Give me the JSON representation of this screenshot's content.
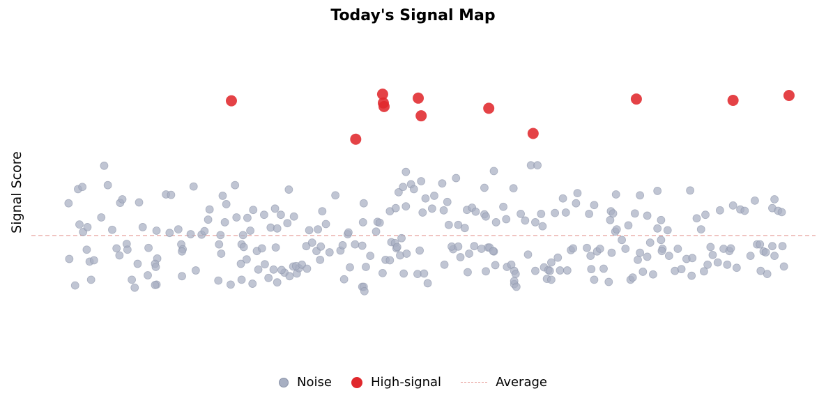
{
  "chart_data": {
    "type": "scatter",
    "title": "Today's Signal Map",
    "xlabel": "",
    "ylabel": "Signal Score",
    "xlim": [
      0,
      100
    ],
    "ylim": [
      -2.95,
      4.7
    ],
    "grid": false,
    "axes_visible": false,
    "legend_placement": "bottom-center",
    "average": 0,
    "series": [
      {
        "name": "Noise",
        "color": "#a7afc2",
        "style": "circle-small",
        "points": [
          [
            0.8,
            0.73
          ],
          [
            0.9,
            -0.53
          ],
          [
            2.1,
            1.05
          ],
          [
            2.7,
            1.1
          ],
          [
            1.7,
            -1.13
          ],
          [
            2.8,
            0.08
          ],
          [
            2.3,
            0.25
          ],
          [
            3.4,
            0.19
          ],
          [
            3.3,
            -0.32
          ],
          [
            3.7,
            -0.59
          ],
          [
            4.3,
            -0.56
          ],
          [
            3.9,
            -1.0
          ],
          [
            5.7,
            1.58
          ],
          [
            6.2,
            1.14
          ],
          [
            5.3,
            0.41
          ],
          [
            6.8,
            0.13
          ],
          [
            7.4,
            -0.29
          ],
          [
            7.9,
            0.74
          ],
          [
            8.2,
            0.82
          ],
          [
            8.8,
            -0.19
          ],
          [
            7.8,
            -0.45
          ],
          [
            8.9,
            -0.32
          ],
          [
            9.5,
            -1.0
          ],
          [
            9.9,
            -1.18
          ],
          [
            11.0,
            0.19
          ],
          [
            10.5,
            0.75
          ],
          [
            10.3,
            -0.64
          ],
          [
            11.8,
            -0.28
          ],
          [
            11.7,
            -0.9
          ],
          [
            12.9,
            0.11
          ],
          [
            13.0,
            -0.52
          ],
          [
            12.7,
            -0.64
          ],
          [
            12.8,
            -0.71
          ],
          [
            12.9,
            -1.11
          ],
          [
            12.7,
            -1.12
          ],
          [
            14.2,
            0.93
          ],
          [
            14.7,
            0.06
          ],
          [
            14.9,
            0.92
          ],
          [
            15.9,
            0.14
          ],
          [
            16.3,
            -0.2
          ],
          [
            16.5,
            -0.31
          ],
          [
            16.4,
            -0.36
          ],
          [
            16.4,
            -0.92
          ],
          [
            17.6,
            0.03
          ],
          [
            18.0,
            1.11
          ],
          [
            18.3,
            -0.79
          ],
          [
            19.1,
            0.02
          ],
          [
            19.5,
            0.1
          ],
          [
            20.0,
            0.36
          ],
          [
            20.2,
            0.59
          ],
          [
            21.4,
            -1.02
          ],
          [
            21.7,
            0.01
          ],
          [
            21.5,
            -0.2
          ],
          [
            21.8,
            -0.41
          ],
          [
            22.3,
            0.3
          ],
          [
            22.0,
            0.9
          ],
          [
            22.5,
            0.71
          ],
          [
            23.1,
            -1.11
          ],
          [
            23.7,
            1.14
          ],
          [
            23.9,
            0.41
          ],
          [
            24.5,
            -0.64
          ],
          [
            24.6,
            -1.0
          ],
          [
            24.8,
            0.01
          ],
          [
            24.6,
            -0.2
          ],
          [
            24.9,
            -0.26
          ],
          [
            25.3,
            -0.54
          ],
          [
            25.4,
            0.4
          ],
          [
            25.8,
            0.11
          ],
          [
            26.1,
            -1.09
          ],
          [
            26.7,
            -0.35
          ],
          [
            26.9,
            -0.77
          ],
          [
            26.2,
            0.58
          ],
          [
            27.4,
            -0.29
          ],
          [
            27.7,
            0.47
          ],
          [
            27.8,
            -0.65
          ],
          [
            28.3,
            -0.96
          ],
          [
            28.6,
            0.18
          ],
          [
            29.0,
            -0.77
          ],
          [
            29.5,
            -1.06
          ],
          [
            29.3,
            -0.27
          ],
          [
            29.5,
            0.16
          ],
          [
            29.2,
            0.61
          ],
          [
            30.0,
            0.47
          ],
          [
            30.5,
            -0.84
          ],
          [
            30.1,
            -0.78
          ],
          [
            30.9,
            0.28
          ],
          [
            31.8,
            0.43
          ],
          [
            31.7,
            -0.7
          ],
          [
            31.2,
            -0.92
          ],
          [
            32.2,
            -0.86
          ],
          [
            32.5,
            -0.74
          ],
          [
            31.1,
            1.04
          ],
          [
            32.1,
            -0.69
          ],
          [
            32.9,
            -0.66
          ],
          [
            33.6,
            -0.75
          ],
          [
            33.5,
            -0.24
          ],
          [
            33.9,
            0.12
          ],
          [
            34.3,
            -0.16
          ],
          [
            34.9,
            -0.35
          ],
          [
            35.1,
            0.14
          ],
          [
            35.4,
            -0.55
          ],
          [
            35.5,
            -0.25
          ],
          [
            35.7,
            0.55
          ],
          [
            36.2,
            0.26
          ],
          [
            36.7,
            -0.38
          ],
          [
            37.5,
            0.91
          ],
          [
            38.2,
            -0.34
          ],
          [
            38.5,
            -0.22
          ],
          [
            38.7,
            -0.99
          ],
          [
            39.2,
            0.03
          ],
          [
            39.5,
            -0.72
          ],
          [
            39.3,
            0.07
          ],
          [
            40.2,
            -0.2
          ],
          [
            41.2,
            -0.23
          ],
          [
            41.3,
            0.3
          ],
          [
            41.4,
            0.73
          ],
          [
            41.2,
            -1.16
          ],
          [
            41.4,
            -1.16
          ],
          [
            41.5,
            -1.26
          ],
          [
            41.7,
            -0.71
          ],
          [
            42.3,
            -0.46
          ],
          [
            43.1,
            0.09
          ],
          [
            43.3,
            0.31
          ],
          [
            43.6,
            0.29
          ],
          [
            44.0,
            -0.85
          ],
          [
            44.4,
            -0.55
          ],
          [
            45.0,
            -0.56
          ],
          [
            45.0,
            0.55
          ],
          [
            45.2,
            -0.15
          ],
          [
            45.7,
            -0.17
          ],
          [
            45.9,
            -0.29
          ],
          [
            45.8,
            0.62
          ],
          [
            46.2,
            0.98
          ],
          [
            46.4,
            -0.45
          ],
          [
            46.0,
            -0.26
          ],
          [
            47.3,
            -0.41
          ],
          [
            46.6,
            -0.06
          ],
          [
            47.2,
            1.44
          ],
          [
            46.9,
            -0.86
          ],
          [
            47.2,
            0.66
          ],
          [
            46.8,
            1.1
          ],
          [
            47.9,
            1.16
          ],
          [
            48.3,
            1.05
          ],
          [
            48.8,
            -0.87
          ],
          [
            49.1,
            -0.34
          ],
          [
            49.3,
            1.23
          ],
          [
            49.5,
            0.52
          ],
          [
            49.7,
            -0.86
          ],
          [
            49.9,
            0.84
          ],
          [
            50.2,
            -1.08
          ],
          [
            50.8,
            0.61
          ],
          [
            51.1,
            0.9
          ],
          [
            52.2,
            1.18
          ],
          [
            52.5,
            -0.66
          ],
          [
            52.4,
            0.57
          ],
          [
            52.9,
            0.76
          ],
          [
            53.1,
            0.24
          ],
          [
            53.7,
            -0.31
          ],
          [
            53.5,
            -0.25
          ],
          [
            54.1,
            1.3
          ],
          [
            54.4,
            -0.25
          ],
          [
            54.4,
            0.24
          ],
          [
            54.7,
            -0.49
          ],
          [
            55.6,
            0.58
          ],
          [
            55.7,
            -0.83
          ],
          [
            55.3,
            0.17
          ],
          [
            55.9,
            -0.41
          ],
          [
            56.3,
            0.63
          ],
          [
            56.6,
            -0.24
          ],
          [
            56.8,
            0.54
          ],
          [
            57.6,
            -0.3
          ],
          [
            58.0,
            1.08
          ],
          [
            58.2,
            -0.81
          ],
          [
            58.0,
            0.48
          ],
          [
            58.2,
            0.43
          ],
          [
            58.5,
            -0.27
          ],
          [
            58.7,
            -0.27
          ],
          [
            59.3,
            -0.36
          ],
          [
            59.2,
            -0.35
          ],
          [
            59.6,
            0.3
          ],
          [
            59.3,
            1.46
          ],
          [
            59.5,
            -0.67
          ],
          [
            60.6,
            0.65
          ],
          [
            61.0,
            0.37
          ],
          [
            61.1,
            -0.71
          ],
          [
            61.7,
            -0.66
          ],
          [
            62.0,
            1.07
          ],
          [
            62.1,
            -0.8
          ],
          [
            62.1,
            -1.1
          ],
          [
            62.3,
            -0.87
          ],
          [
            62.1,
            -1.03
          ],
          [
            62.4,
            -1.16
          ],
          [
            63.0,
            0.49
          ],
          [
            63.6,
            0.34
          ],
          [
            64.0,
            -0.43
          ],
          [
            64.4,
            1.59
          ],
          [
            65.0,
            -0.8
          ],
          [
            65.0,
            0.3
          ],
          [
            65.3,
            1.59
          ],
          [
            66.0,
            0.21
          ],
          [
            65.8,
            0.49
          ],
          [
            66.2,
            -0.72
          ],
          [
            66.8,
            -0.78
          ],
          [
            66.6,
            -0.98
          ],
          [
            67.0,
            -0.8
          ],
          [
            67.2,
            -1.0
          ],
          [
            67.2,
            -0.61
          ],
          [
            67.7,
            0.51
          ],
          [
            68.1,
            -0.5
          ],
          [
            68.4,
            -0.79
          ],
          [
            68.8,
            0.84
          ],
          [
            69.2,
            0.52
          ],
          [
            69.4,
            -0.79
          ],
          [
            69.9,
            -0.33
          ],
          [
            70.6,
            0.73
          ],
          [
            70.2,
            -0.29
          ],
          [
            70.8,
            0.96
          ],
          [
            72.1,
            -0.28
          ],
          [
            72.4,
            0.49
          ],
          [
            72.6,
            -0.46
          ],
          [
            72.7,
            -0.76
          ],
          [
            73.1,
            0.69
          ],
          [
            73.5,
            -0.36
          ],
          [
            73.1,
            -1.0
          ],
          [
            73.9,
            -0.3
          ],
          [
            74.4,
            -0.75
          ],
          [
            75.3,
            0.35
          ],
          [
            75.1,
            -1.05
          ],
          [
            75.4,
            0.55
          ],
          [
            75.7,
            0.5
          ],
          [
            75.5,
            -0.39
          ],
          [
            76.1,
            0.93
          ],
          [
            76.0,
            0.09
          ],
          [
            76.9,
            -0.1
          ],
          [
            77.4,
            -0.3
          ],
          [
            76.2,
            0.14
          ],
          [
            77.8,
            0.23
          ],
          [
            78.1,
            -1.0
          ],
          [
            78.4,
            -0.95
          ],
          [
            78.7,
            0.5
          ],
          [
            79.1,
            -0.55
          ],
          [
            79.4,
            -0.39
          ],
          [
            79.8,
            -0.82
          ],
          [
            79.4,
            0.91
          ],
          [
            80.4,
            0.45
          ],
          [
            80.4,
            -0.48
          ],
          [
            80.8,
            -0.16
          ],
          [
            81.2,
            -0.88
          ],
          [
            81.8,
            0.16
          ],
          [
            82.3,
            -0.1
          ],
          [
            81.8,
            1.01
          ],
          [
            82.5,
            -0.3
          ],
          [
            82.3,
            0.35
          ],
          [
            82.4,
            -0.35
          ],
          [
            83.2,
            0.12
          ],
          [
            83.4,
            -0.46
          ],
          [
            84.2,
            -0.8
          ],
          [
            84.6,
            -0.3
          ],
          [
            85.1,
            -0.76
          ],
          [
            85.8,
            -0.53
          ],
          [
            86.3,
            1.02
          ],
          [
            86.5,
            -0.91
          ],
          [
            86.6,
            -0.51
          ],
          [
            87.2,
            0.39
          ],
          [
            87.8,
            0.14
          ],
          [
            88.4,
            0.47
          ],
          [
            88.7,
            -0.66
          ],
          [
            89.1,
            -0.26
          ],
          [
            88.2,
            -0.81
          ],
          [
            89.4,
            -0.44
          ],
          [
            90.1,
            -0.61
          ],
          [
            90.4,
            0.57
          ],
          [
            90.9,
            -0.3
          ],
          [
            91.4,
            -0.66
          ],
          [
            91.7,
            -0.35
          ],
          [
            91.9,
            -0.29
          ],
          [
            92.2,
            0.68
          ],
          [
            92.7,
            -0.73
          ],
          [
            93.2,
            0.59
          ],
          [
            93.8,
            0.56
          ],
          [
            94.6,
            -0.46
          ],
          [
            95.2,
            0.79
          ],
          [
            95.5,
            -0.2
          ],
          [
            95.9,
            -0.2
          ],
          [
            96.4,
            -0.36
          ],
          [
            96.7,
            -0.38
          ],
          [
            96.9,
            -0.87
          ],
          [
            97.6,
            0.62
          ],
          [
            97.9,
            -0.46
          ],
          [
            97.9,
            0.82
          ],
          [
            98.4,
            0.56
          ],
          [
            98.9,
            0.53
          ],
          [
            99.0,
            -0.24
          ],
          [
            99.2,
            -0.7
          ],
          [
            97.6,
            -0.24
          ],
          [
            96.0,
            -0.8
          ]
        ]
      },
      {
        "name": "High-signal",
        "color": "#e0282c",
        "style": "circle-large",
        "points": [
          [
            23.2,
            3.05
          ],
          [
            40.3,
            2.18
          ],
          [
            44.0,
            3.2
          ],
          [
            44.1,
            3.0
          ],
          [
            44.2,
            2.92
          ],
          [
            48.9,
            3.11
          ],
          [
            49.3,
            2.71
          ],
          [
            58.6,
            2.88
          ],
          [
            64.7,
            2.31
          ],
          [
            78.9,
            3.09
          ],
          [
            92.2,
            3.06
          ],
          [
            99.9,
            3.17
          ]
        ]
      }
    ],
    "legend": [
      {
        "label": "Noise",
        "kind": "noise"
      },
      {
        "label": "High-signal",
        "kind": "high"
      },
      {
        "label": "Average",
        "kind": "avg"
      }
    ]
  }
}
